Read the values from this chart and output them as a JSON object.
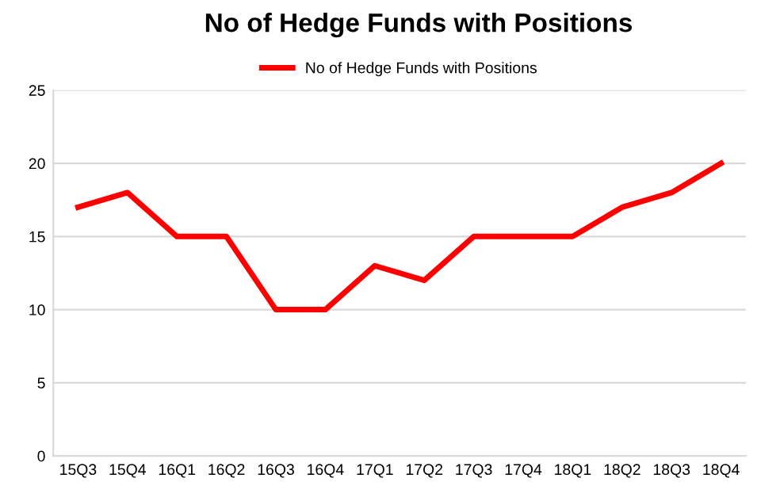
{
  "chart_data": {
    "type": "line",
    "title": "No of Hedge Funds with Positions",
    "categories": [
      "15Q3",
      "15Q4",
      "16Q1",
      "16Q2",
      "16Q3",
      "16Q4",
      "17Q1",
      "17Q2",
      "17Q3",
      "17Q4",
      "18Q1",
      "18Q2",
      "18Q3",
      "18Q4"
    ],
    "series": [
      {
        "name": "No of Hedge Funds with Positions",
        "color": "#ff0000",
        "values": [
          17,
          18,
          15,
          15,
          10,
          10,
          13,
          12,
          15,
          15,
          15,
          17,
          18,
          20
        ]
      }
    ],
    "ylim": [
      0,
      25
    ],
    "yticks": [
      0,
      5,
      10,
      15,
      20,
      25
    ],
    "grid": "y",
    "legend": "top",
    "marker": "none",
    "line_style": "solid"
  }
}
